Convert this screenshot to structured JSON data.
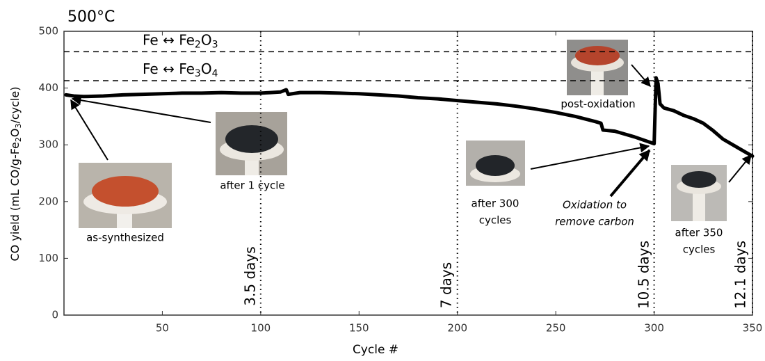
{
  "chart_data": {
    "type": "line",
    "title": "500°C",
    "x_label": "Cycle #",
    "y_label_parts": [
      "CO yield (mL CO/g-Fe",
      "2",
      "O",
      "3",
      "/cycle)"
    ],
    "xlim": [
      0,
      350
    ],
    "ylim": [
      0,
      500
    ],
    "xticks": [
      50,
      100,
      150,
      200,
      250,
      300,
      350
    ],
    "yticks": [
      0,
      100,
      200,
      300,
      400,
      500
    ],
    "x": [
      1,
      5,
      10,
      20,
      30,
      40,
      50,
      60,
      70,
      80,
      90,
      100,
      105,
      110,
      113,
      114,
      120,
      130,
      140,
      150,
      160,
      170,
      180,
      190,
      200,
      210,
      220,
      230,
      240,
      250,
      260,
      270,
      273,
      274,
      280,
      290,
      300,
      301,
      302,
      303,
      305,
      310,
      315,
      320,
      325,
      330,
      335,
      340,
      345,
      350
    ],
    "series": [
      {
        "color": "#000000",
        "values": [
          388,
          386,
          385,
          386,
          388,
          389,
          390,
          391,
          391,
          392,
          391,
          391,
          392,
          393,
          397,
          389,
          392,
          392,
          391,
          390,
          388,
          386,
          383,
          381,
          378,
          375,
          372,
          368,
          363,
          357,
          350,
          341,
          338,
          326,
          324,
          314,
          302,
          418,
          408,
          372,
          365,
          360,
          352,
          346,
          338,
          325,
          310,
          300,
          290,
          280
        ]
      }
    ],
    "reference_lines": [
      {
        "value": 464,
        "label_parts": [
          "Fe ↔ Fe",
          "2",
          "O",
          "3"
        ]
      },
      {
        "value": 413,
        "label_parts": [
          "Fe ↔ Fe",
          "3",
          "O",
          "4"
        ]
      }
    ],
    "time_markers": [
      {
        "x": 100,
        "label": "3.5 days"
      },
      {
        "x": 200,
        "label": "7 days"
      },
      {
        "x": 300,
        "label": "10.5 days"
      },
      {
        "x": 350,
        "label": "12.1 days"
      }
    ],
    "annotations": [
      {
        "lines": [
          "as-synthesized"
        ]
      },
      {
        "lines": [
          "after 1 cycle"
        ]
      },
      {
        "lines": [
          "after 300",
          "cycles"
        ]
      },
      {
        "lines": [
          "Oxidation to",
          "remove carbon"
        ],
        "italic": true
      },
      {
        "lines": [
          "post-oxidation"
        ]
      },
      {
        "lines": [
          "after 350",
          "cycles"
        ]
      }
    ]
  }
}
